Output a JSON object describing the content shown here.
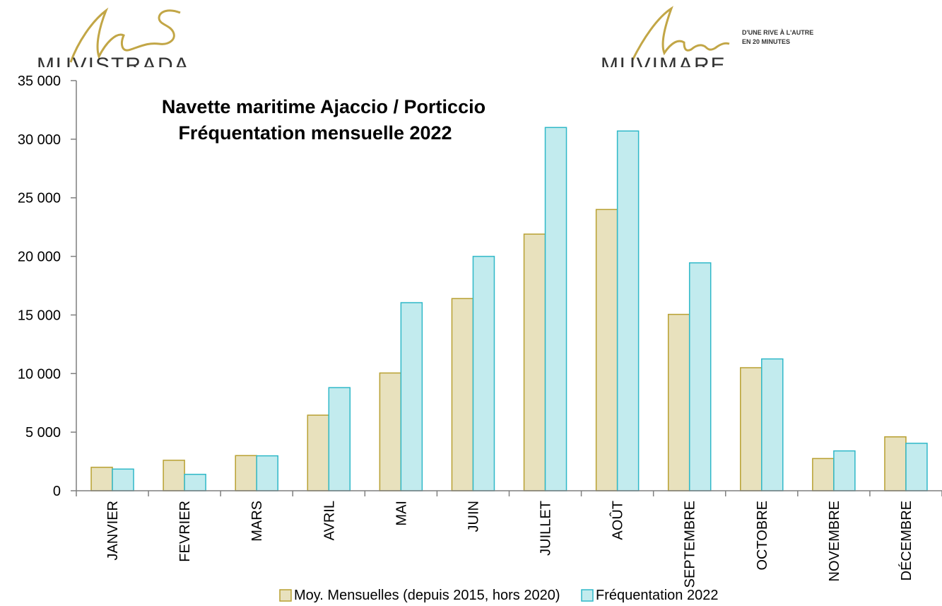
{
  "logos": {
    "left": {
      "brand": "MUVISTRADA"
    },
    "right": {
      "brand": "MUVIMARE",
      "tagline_1": "D'UNE RIVE À L'AUTRE",
      "tagline_2": "EN 20 MINUTES"
    }
  },
  "colors": {
    "series_1_fill": "#e8e1bd",
    "series_1_stroke": "#b8a031",
    "series_2_fill": "#c2ebee",
    "series_2_stroke": "#2fb8c8",
    "logo_gold": "#c2a646"
  },
  "chart_data": {
    "type": "bar",
    "title_lines": [
      "Navette maritime Ajaccio / Porticcio",
      "Fréquentation mensuelle 2022"
    ],
    "xlabel": "",
    "ylabel": "",
    "ylim": [
      0,
      35000
    ],
    "yticks": [
      0,
      5000,
      10000,
      15000,
      20000,
      25000,
      30000,
      35000
    ],
    "ytick_labels": [
      "0",
      "5 000",
      "10 000",
      "15 000",
      "20 000",
      "25 000",
      "30 000",
      "35 000"
    ],
    "categories": [
      "JANVIER",
      "FEVRIER",
      "MARS",
      "AVRIL",
      "MAI",
      "JUIN",
      "JUILLET",
      "AOÛT",
      "SEPTEMBRE",
      "OCTOBRE",
      "NOVEMBRE",
      "DÉCEMBRE"
    ],
    "series": [
      {
        "name": "Moy. Mensuelles (depuis 2015, hors 2020)",
        "values": [
          2000,
          2600,
          3000,
          6450,
          10050,
          16400,
          21900,
          24000,
          15050,
          10500,
          2750,
          4600
        ]
      },
      {
        "name": "Fréquentation 2022",
        "values": [
          1850,
          1400,
          2980,
          8800,
          16050,
          20000,
          31000,
          30700,
          19450,
          11250,
          3400,
          4050
        ]
      }
    ],
    "grid": false,
    "legend_position": "bottom"
  }
}
